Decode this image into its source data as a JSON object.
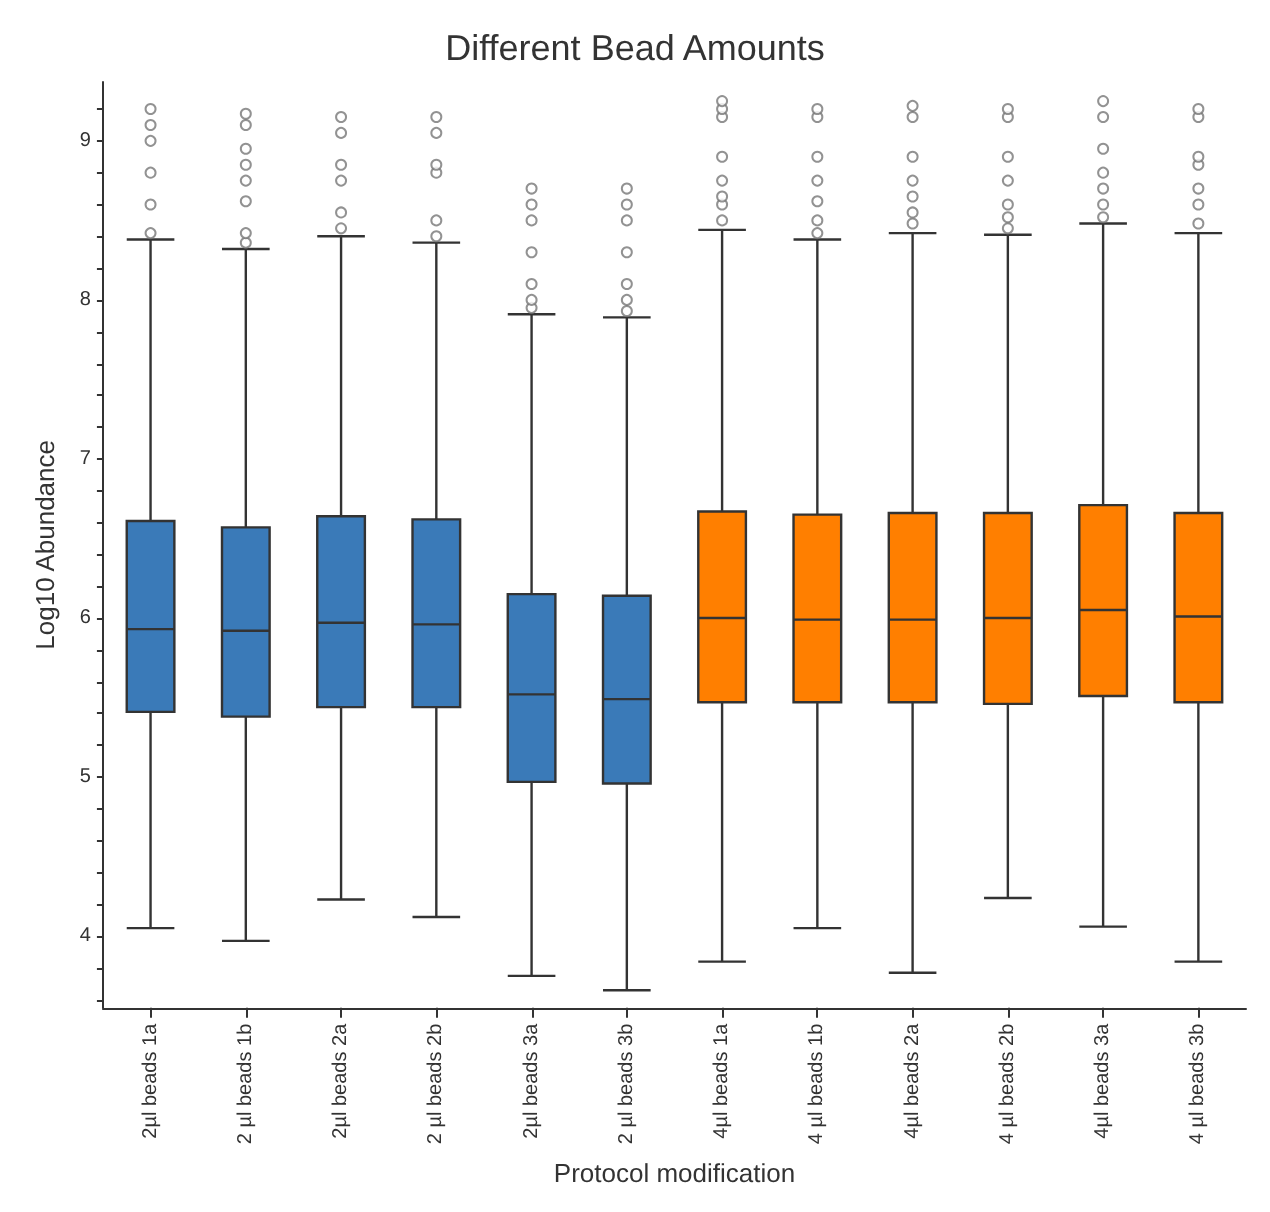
{
  "chart_data": {
    "type": "box",
    "title": "Different Bead Amounts",
    "xlabel": "Protocol modification",
    "ylabel": "Log10 Abundance",
    "categories": [
      "2µl beads 1a",
      "2 µl beads 1b",
      "2µl beads 2a",
      "2 µl beads 2b",
      "2µl beads 3a",
      "2 µl beads 3b",
      "4µl beads 1a",
      "4 µl beads 1b",
      "4µl beads 2a",
      "4 µl beads 2b",
      "4µl beads 3a",
      "4 µl beads 3b"
    ],
    "colors": [
      "#3a7ab8",
      "#3a7ab8",
      "#3a7ab8",
      "#3a7ab8",
      "#3a7ab8",
      "#3a7ab8",
      "#ff7f00",
      "#ff7f00",
      "#ff7f00",
      "#ff7f00",
      "#ff7f00",
      "#ff7f00"
    ],
    "boxes": [
      {
        "low": 4.05,
        "q1": 5.41,
        "median": 5.93,
        "q3": 6.61,
        "high": 8.38,
        "outliers": [
          8.42,
          8.6,
          8.8,
          9.0,
          9.1,
          9.2
        ]
      },
      {
        "low": 3.97,
        "q1": 5.38,
        "median": 5.92,
        "q3": 6.57,
        "high": 8.32,
        "outliers": [
          8.36,
          8.42,
          8.62,
          8.75,
          8.85,
          8.95,
          9.1,
          9.17
        ]
      },
      {
        "low": 4.23,
        "q1": 5.44,
        "median": 5.97,
        "q3": 6.64,
        "high": 8.4,
        "outliers": [
          8.45,
          8.55,
          8.75,
          8.85,
          9.05,
          9.15
        ]
      },
      {
        "low": 4.12,
        "q1": 5.44,
        "median": 5.96,
        "q3": 6.62,
        "high": 8.36,
        "outliers": [
          8.4,
          8.5,
          8.8,
          8.85,
          9.05,
          9.15
        ]
      },
      {
        "low": 3.75,
        "q1": 4.97,
        "median": 5.52,
        "q3": 6.15,
        "high": 7.91,
        "outliers": [
          7.95,
          8.0,
          8.1,
          8.3,
          8.5,
          8.6,
          8.7
        ]
      },
      {
        "low": 3.66,
        "q1": 4.96,
        "median": 5.49,
        "q3": 6.14,
        "high": 7.89,
        "outliers": [
          7.93,
          8.0,
          8.1,
          8.3,
          8.5,
          8.6,
          8.7
        ]
      },
      {
        "low": 3.84,
        "q1": 5.47,
        "median": 6.0,
        "q3": 6.67,
        "high": 8.44,
        "outliers": [
          8.5,
          8.6,
          8.65,
          8.75,
          8.9,
          9.15,
          9.2,
          9.25
        ]
      },
      {
        "low": 4.05,
        "q1": 5.47,
        "median": 5.99,
        "q3": 6.65,
        "high": 8.38,
        "outliers": [
          8.42,
          8.5,
          8.62,
          8.75,
          8.9,
          9.15,
          9.2
        ]
      },
      {
        "low": 3.77,
        "q1": 5.47,
        "median": 5.99,
        "q3": 6.66,
        "high": 8.42,
        "outliers": [
          8.48,
          8.55,
          8.65,
          8.75,
          8.9,
          9.15,
          9.22
        ]
      },
      {
        "low": 4.24,
        "q1": 5.46,
        "median": 6.0,
        "q3": 6.66,
        "high": 8.41,
        "outliers": [
          8.45,
          8.52,
          8.6,
          8.75,
          8.9,
          9.15,
          9.2
        ]
      },
      {
        "low": 4.06,
        "q1": 5.51,
        "median": 6.05,
        "q3": 6.71,
        "high": 8.48,
        "outliers": [
          8.52,
          8.6,
          8.7,
          8.8,
          8.95,
          9.15,
          9.25
        ]
      },
      {
        "low": 3.84,
        "q1": 5.47,
        "median": 6.01,
        "q3": 6.66,
        "high": 8.42,
        "outliers": [
          8.48,
          8.6,
          8.7,
          8.85,
          8.9,
          9.15,
          9.2
        ]
      }
    ],
    "ylim": [
      3.55,
      9.37
    ],
    "yticks": [
      {
        "value": 3.6,
        "label": null
      },
      {
        "value": 3.8,
        "label": null
      },
      4,
      {
        "value": 4.2,
        "label": null
      },
      {
        "value": 4.4,
        "label": null
      },
      {
        "value": 4.6,
        "label": null
      },
      {
        "value": 4.8,
        "label": null
      },
      5,
      {
        "value": 5.2,
        "label": null
      },
      {
        "value": 5.4,
        "label": null
      },
      {
        "value": 5.6,
        "label": null
      },
      {
        "value": 5.8,
        "label": null
      },
      6,
      {
        "value": 6.2,
        "label": null
      },
      {
        "value": 6.4,
        "label": null
      },
      {
        "value": 6.6,
        "label": null
      },
      {
        "value": 6.8,
        "label": null
      },
      7,
      {
        "value": 7.2,
        "label": null
      },
      {
        "value": 7.4,
        "label": null
      },
      {
        "value": 7.6,
        "label": null
      },
      {
        "value": 7.8,
        "label": null
      },
      8,
      {
        "value": 8.2,
        "label": null
      },
      {
        "value": 8.4,
        "label": null
      },
      {
        "value": 8.6,
        "label": null
      },
      {
        "value": 8.8,
        "label": null
      },
      9,
      {
        "value": 9.2,
        "label": null
      }
    ],
    "grid": false
  }
}
